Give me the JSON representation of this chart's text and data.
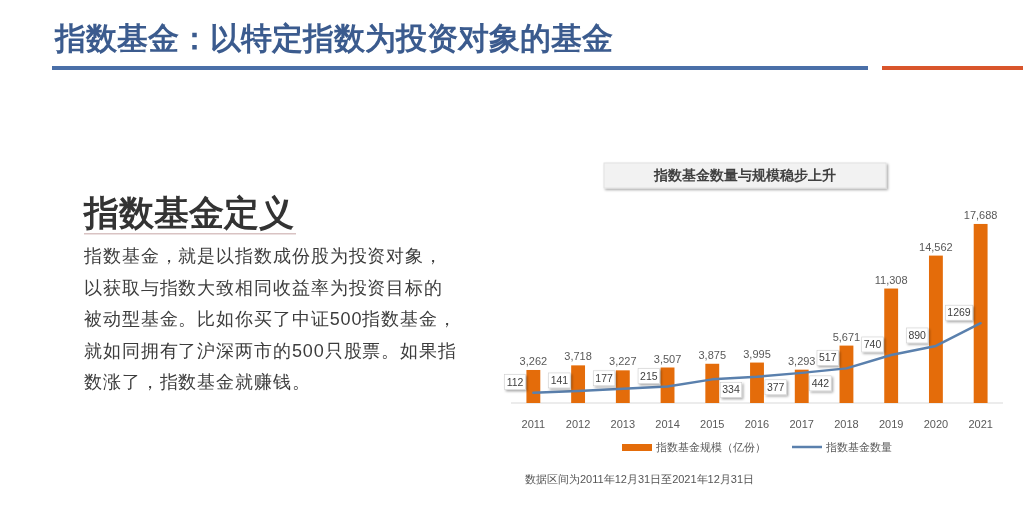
{
  "chart_data": {
    "type": "bar",
    "title": "指数基金：以特定指数为投资对象的基金",
    "subtitle": "指数基金数量与规模稳步上升",
    "annotations": [
      "指数基金定义",
      "指数基金，就是以指数成份股为投资对象，以获取与指数大致相同收益率为投资目标的被动型基金。比如你买了中证500指数基金，就如同拥有了沪深两市的500只股票。如果指数涨了，指数基金就赚钱。",
      "数据区间为2011年12月31日至2021年12月31日"
    ],
    "categories": [
      "2011",
      "2012",
      "2013",
      "2014",
      "2015",
      "2016",
      "2017",
      "2018",
      "2019",
      "2020",
      "2021"
    ],
    "series": [
      {
        "name": "指数基金规模（亿份）",
        "color": "#e46c0a",
        "values": [
          3262,
          3718,
          3227,
          3507,
          3875,
          3995,
          3293,
          5671,
          11308,
          14562,
          17688
        ],
        "value_labels": [
          "3,262",
          "3,718",
          "3,227",
          "3,507",
          "3,875",
          "3,995",
          "3,293",
          "5,671",
          "11,308",
          "14,562",
          "17,688"
        ]
      },
      {
        "name": "指数基金数量",
        "type": "line",
        "axis": "y2",
        "color": "#5a80ad",
        "values": [
          112,
          141,
          177,
          215,
          334,
          377,
          442,
          517,
          740,
          890,
          1269
        ],
        "value_labels": [
          "112",
          "141",
          "177",
          "215",
          "334",
          "377",
          "442",
          "517",
          "740",
          "890",
          "1269"
        ]
      }
    ],
    "legend": "bottom",
    "tick_labels": "x"
  }
}
